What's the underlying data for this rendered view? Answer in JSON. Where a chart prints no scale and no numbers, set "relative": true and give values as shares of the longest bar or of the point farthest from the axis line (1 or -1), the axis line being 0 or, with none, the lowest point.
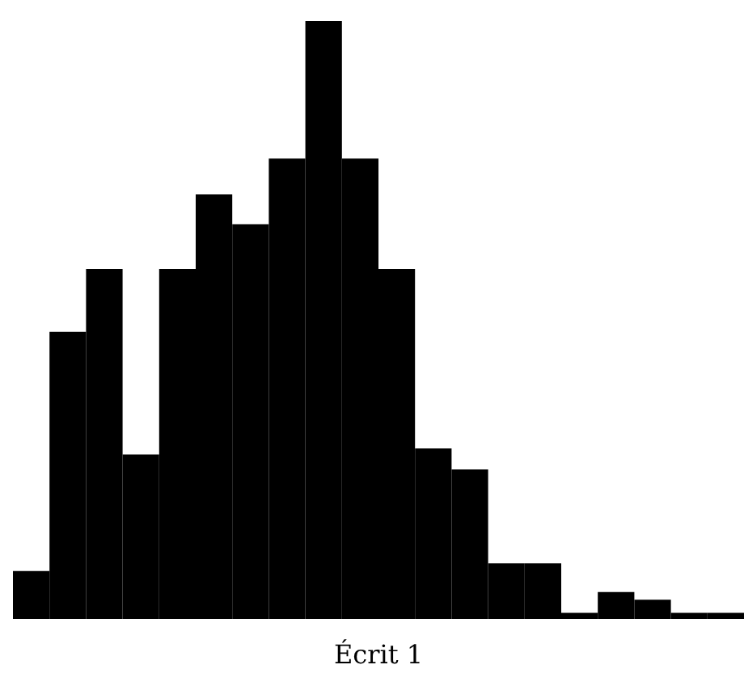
{
  "chart_data": {
    "type": "bar",
    "xlabel": "Écrit 1",
    "relative": true,
    "color": "#000000",
    "categories": [
      null,
      null,
      null,
      null,
      null,
      null,
      null,
      null,
      null,
      null,
      null,
      null,
      null,
      null,
      null,
      null,
      null,
      null,
      null,
      null
    ],
    "values": [
      0.08,
      0.48,
      0.585,
      0.275,
      0.585,
      0.71,
      0.66,
      0.77,
      1,
      0.77,
      0.585,
      0.285,
      0.25,
      0.093,
      0.093,
      0.01,
      0.045,
      0.032,
      0.01,
      0.01
    ]
  }
}
